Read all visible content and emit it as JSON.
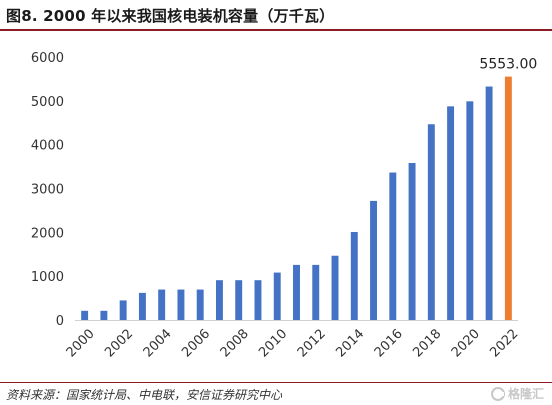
{
  "header": {
    "title": "图8. 2000 年以来我国核电装机容量（万千瓦）"
  },
  "footer": {
    "source": "资料来源：国家统计局、中电联，安信证券研究中心",
    "watermark": "格隆汇"
  },
  "chart_data": {
    "type": "bar",
    "title": "",
    "xlabel": "",
    "ylabel": "",
    "categories": [
      "2000",
      "2001",
      "2002",
      "2003",
      "2004",
      "2005",
      "2006",
      "2007",
      "2008",
      "2009",
      "2010",
      "2011",
      "2012",
      "2013",
      "2014",
      "2015",
      "2016",
      "2017",
      "2018",
      "2019",
      "2020",
      "2021",
      "2022"
    ],
    "x_tick_labels": [
      "2000",
      "",
      "2002",
      "",
      "2004",
      "",
      "2006",
      "",
      "2008",
      "",
      "2010",
      "",
      "2012",
      "",
      "2014",
      "",
      "2016",
      "",
      "2018",
      "",
      "2020",
      "",
      "2022"
    ],
    "values": [
      210,
      210,
      447,
      619,
      695,
      695,
      695,
      908,
      908,
      908,
      1082,
      1257,
      1257,
      1466,
      2008,
      2717,
      3364,
      3582,
      4466,
      4874,
      4989,
      5326,
      5553
    ],
    "ylim": [
      0,
      6000
    ],
    "yticks": [
      0,
      1000,
      2000,
      3000,
      4000,
      5000,
      6000
    ],
    "grid": false,
    "legend": "none",
    "colors": {
      "bar": "#4472c4",
      "highlight": "#ed7d31",
      "axis": "#d0d0d0",
      "tick_text": "#333333"
    },
    "highlight_index": 22,
    "annotation": {
      "index": 22,
      "text": "5553.00"
    }
  }
}
